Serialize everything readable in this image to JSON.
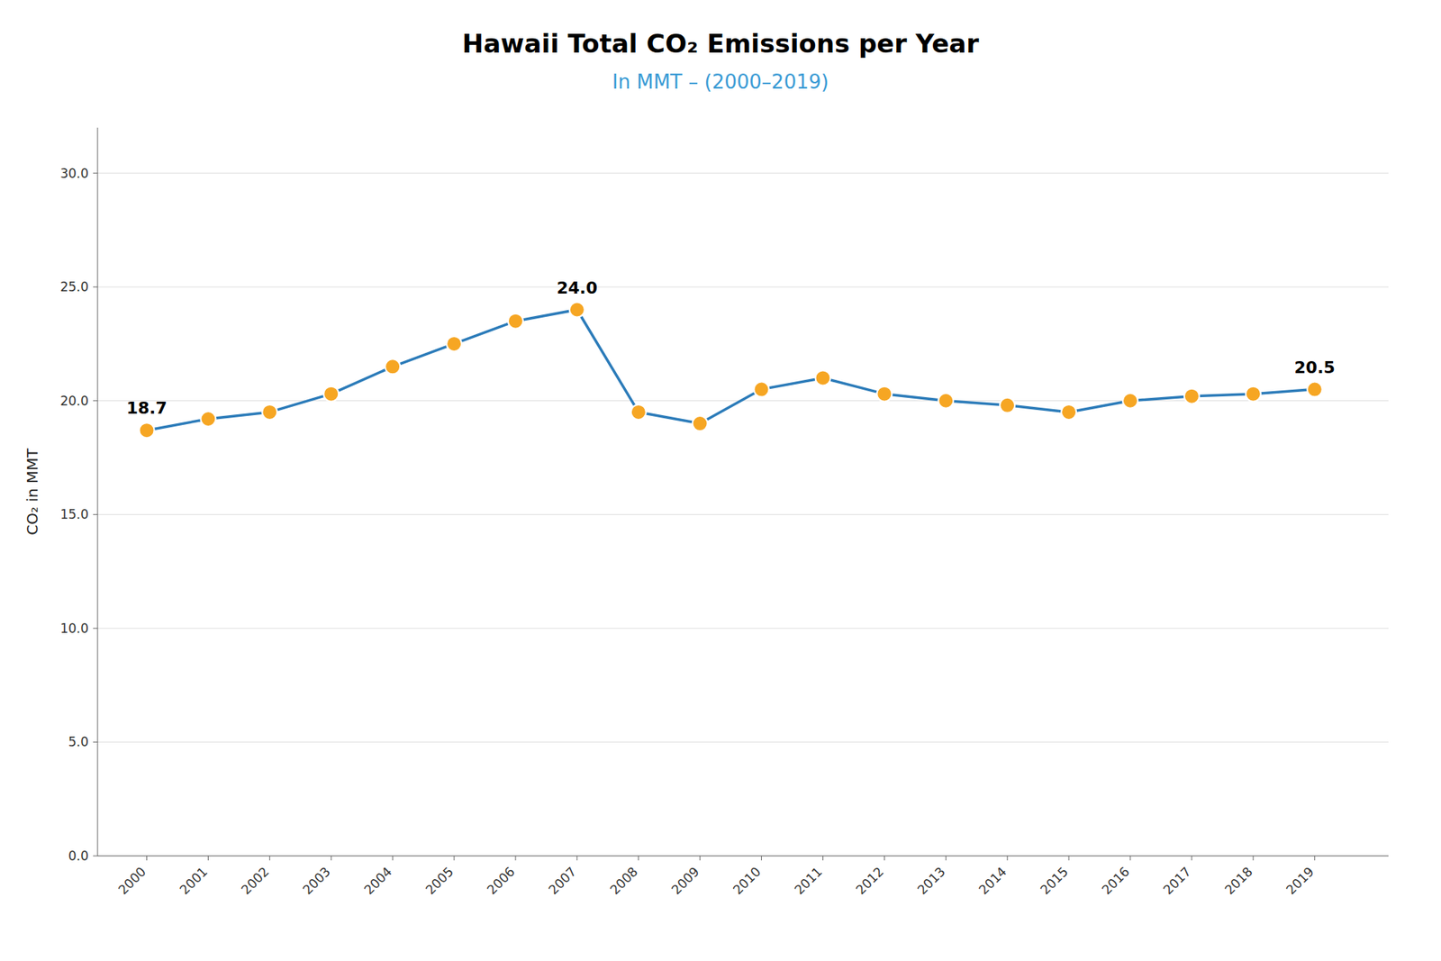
{
  "chart_data": {
    "type": "line",
    "title": "Hawaii Total CO₂ Emissions per Year",
    "subtitle": "In MMT – (2000–2019)",
    "subtitle_color": "#3a9bd5",
    "y_label": "CO₂ in MMT",
    "x": [
      2000,
      2001,
      2002,
      2003,
      2004,
      2005,
      2006,
      2007,
      2008,
      2009,
      2010,
      2011,
      2012,
      2013,
      2014,
      2015,
      2016,
      2017,
      2018,
      2019
    ],
    "values": [
      18.7,
      19.2,
      19.5,
      20.3,
      21.5,
      22.5,
      23.5,
      24.0,
      19.5,
      19.0,
      20.5,
      21.0,
      20.3,
      20.0,
      19.8,
      19.5,
      20.0,
      20.2,
      20.3,
      20.5
    ],
    "color": "#2b7bb9",
    "colors": [
      "#f6a623",
      "#f6a623",
      "#f6a623",
      "#f6a623",
      "#f6a623",
      "#f6a623",
      "#f6a623",
      "#f6a623",
      "#f6a623",
      "#f6a623",
      "#f6a623",
      "#f6a623",
      "#f6a623",
      "#f6a623",
      "#f6a623",
      "#f6a623",
      "#f6a623",
      "#f6a623",
      "#f6a623",
      "#f6a623"
    ],
    "marker": "circle",
    "xlim": [
      1999.2,
      2020.2
    ],
    "xticks": [
      2000,
      2001,
      2002,
      2003,
      2004,
      2005,
      2006,
      2007,
      2008,
      2009,
      2010,
      2011,
      2012,
      2013,
      2014,
      2015,
      2016,
      2017,
      2018,
      2019
    ],
    "ylim": [
      0,
      32
    ],
    "yticks": [
      {
        "value": 0,
        "label": "0.0"
      },
      {
        "value": 5,
        "label": "5.0"
      },
      {
        "value": 10,
        "label": "10.0"
      },
      {
        "value": 15,
        "label": "15.0"
      },
      {
        "value": 20,
        "label": "20.0"
      },
      {
        "value": 25,
        "label": "25.0"
      },
      {
        "value": 30,
        "label": "30.0"
      }
    ],
    "grid": true,
    "annotations": [
      {
        "text": "18.7",
        "x": 2000,
        "y": 18.7
      },
      {
        "text": "24.0",
        "x": 2007,
        "y": 24.0
      },
      {
        "text": "20.5",
        "x": 2019,
        "y": 20.5
      }
    ]
  }
}
